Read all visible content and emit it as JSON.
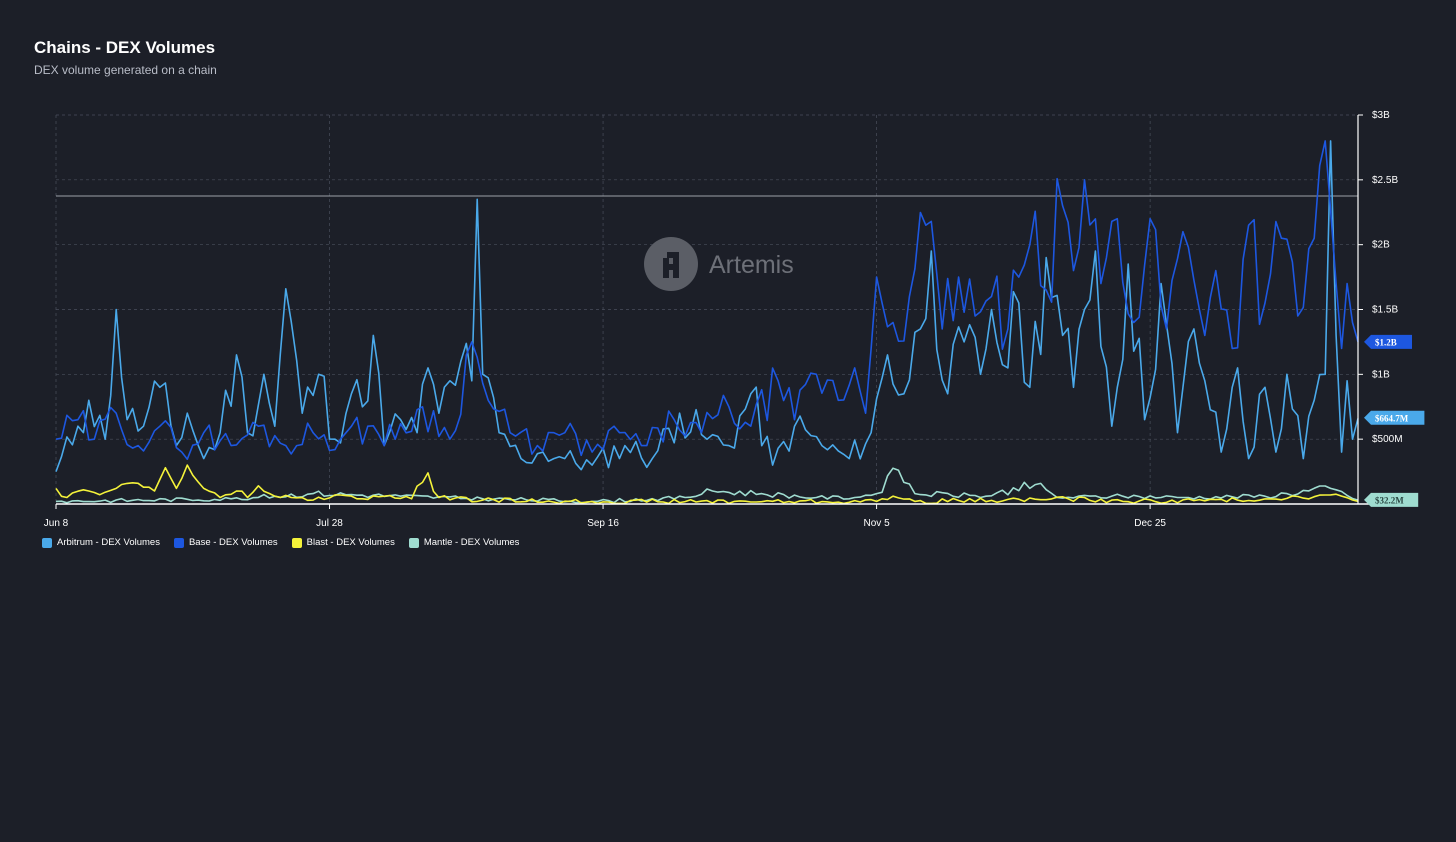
{
  "header": {
    "title": "Chains - DEX Volumes",
    "subtitle": "DEX volume generated on a chain"
  },
  "watermark": {
    "text": "Artemis",
    "icon": "artemis-logo-icon"
  },
  "colors": {
    "background": "#1c1f28",
    "grid": "#4a4f5c",
    "axis": "#ffffff",
    "arbitrum": "#4aa9ea",
    "base": "#1d57e0",
    "blast": "#f4f23a",
    "mantle": "#9fdcd0"
  },
  "chart_data": {
    "type": "line",
    "title": "Chains - DEX Volumes",
    "subtitle": "DEX volume generated on a chain",
    "xlabel": "",
    "ylabel": "",
    "x_tick_labels": [
      "Jun 8",
      "Jul 28",
      "Sep 16",
      "Nov 5",
      "Dec 25"
    ],
    "y_tick_labels": [
      "$500M",
      "$1B",
      "$1.5B",
      "$2B",
      "$2.5B",
      "$3B"
    ],
    "ylim": [
      0,
      3000000000
    ],
    "x_range": [
      "2024-06-08",
      "2025-02-01"
    ],
    "grid": true,
    "legend_position": "bottom-left",
    "last_value_labels": [
      {
        "series": "Base - DEX Volumes",
        "label": "$1.2B",
        "value": 1250000000
      },
      {
        "series": "Arbitrum - DEX Volumes",
        "label": "$664.7M",
        "value": 664700000
      },
      {
        "series": "Mantle - DEX Volumes",
        "label": "$32.2M",
        "value": 32200000
      }
    ],
    "series": [
      {
        "name": "Arbitrum - DEX Volumes",
        "color": "#4aa9ea",
        "anchors": [
          [
            "2024-06-08",
            0.25
          ],
          [
            "2024-06-12",
            0.6
          ],
          [
            "2024-06-14",
            0.8
          ],
          [
            "2024-06-17",
            0.5
          ],
          [
            "2024-06-19",
            1.5
          ],
          [
            "2024-06-21",
            0.65
          ],
          [
            "2024-06-24",
            0.6
          ],
          [
            "2024-06-27",
            0.9
          ],
          [
            "2024-06-30",
            0.45
          ],
          [
            "2024-07-02",
            0.7
          ],
          [
            "2024-07-05",
            0.35
          ],
          [
            "2024-07-08",
            0.55
          ],
          [
            "2024-07-11",
            1.15
          ],
          [
            "2024-07-13",
            0.55
          ],
          [
            "2024-07-16",
            1.0
          ],
          [
            "2024-07-18",
            0.6
          ],
          [
            "2024-07-20",
            1.66
          ],
          [
            "2024-07-23",
            0.7
          ],
          [
            "2024-07-26",
            1.0
          ],
          [
            "2024-07-29",
            0.5
          ],
          [
            "2024-08-01",
            0.85
          ],
          [
            "2024-08-03",
            0.75
          ],
          [
            "2024-08-05",
            1.3
          ],
          [
            "2024-08-07",
            0.45
          ],
          [
            "2024-08-10",
            0.65
          ],
          [
            "2024-08-13",
            0.55
          ],
          [
            "2024-08-15",
            1.05
          ],
          [
            "2024-08-17",
            0.7
          ],
          [
            "2024-08-19",
            0.95
          ],
          [
            "2024-08-21",
            1.1
          ],
          [
            "2024-08-23",
            0.95
          ],
          [
            "2024-08-24",
            2.35
          ],
          [
            "2024-08-25",
            1.0
          ],
          [
            "2024-08-28",
            0.55
          ],
          [
            "2024-09-01",
            0.35
          ],
          [
            "2024-09-05",
            0.4
          ],
          [
            "2024-09-09",
            0.35
          ],
          [
            "2024-09-14",
            0.3
          ],
          [
            "2024-09-20",
            0.45
          ],
          [
            "2024-09-25",
            0.35
          ],
          [
            "2024-09-30",
            0.7
          ],
          [
            "2024-10-05",
            0.5
          ],
          [
            "2024-10-09",
            0.45
          ],
          [
            "2024-10-13",
            0.85
          ],
          [
            "2024-10-17",
            0.3
          ],
          [
            "2024-10-21",
            0.6
          ],
          [
            "2024-10-26",
            0.45
          ],
          [
            "2024-10-31",
            0.35
          ],
          [
            "2024-11-04",
            0.55
          ],
          [
            "2024-11-07",
            1.15
          ],
          [
            "2024-11-10",
            0.85
          ],
          [
            "2024-11-13",
            1.35
          ],
          [
            "2024-11-15",
            1.95
          ],
          [
            "2024-11-18",
            0.85
          ],
          [
            "2024-11-21",
            1.25
          ],
          [
            "2024-11-24",
            1.0
          ],
          [
            "2024-11-26",
            1.5
          ],
          [
            "2024-11-29",
            1.05
          ],
          [
            "2024-12-01",
            1.55
          ],
          [
            "2024-12-03",
            0.9
          ],
          [
            "2024-12-06",
            1.9
          ],
          [
            "2024-12-09",
            1.3
          ],
          [
            "2024-12-11",
            0.9
          ],
          [
            "2024-12-13",
            1.5
          ],
          [
            "2024-12-15",
            1.95
          ],
          [
            "2024-12-18",
            0.6
          ],
          [
            "2024-12-21",
            1.85
          ],
          [
            "2024-12-24",
            0.65
          ],
          [
            "2024-12-27",
            1.7
          ],
          [
            "2024-12-30",
            0.55
          ],
          [
            "2025-01-02",
            1.35
          ],
          [
            "2025-01-04",
            0.95
          ],
          [
            "2025-01-07",
            0.4
          ],
          [
            "2025-01-10",
            1.05
          ],
          [
            "2025-01-12",
            0.35
          ],
          [
            "2025-01-15",
            0.9
          ],
          [
            "2025-01-17",
            0.4
          ],
          [
            "2025-01-19",
            1.0
          ],
          [
            "2025-01-22",
            0.35
          ],
          [
            "2025-01-24",
            0.8
          ],
          [
            "2025-01-26",
            1.0
          ],
          [
            "2025-01-27",
            2.8
          ],
          [
            "2025-01-28",
            1.3
          ],
          [
            "2025-01-29",
            0.4
          ],
          [
            "2025-01-30",
            0.95
          ],
          [
            "2025-01-31",
            0.5
          ],
          [
            "2025-02-01",
            0.66
          ]
        ]
      },
      {
        "name": "Base - DEX Volumes",
        "color": "#1d57e0",
        "anchors": [
          [
            "2024-06-08",
            0.5
          ],
          [
            "2024-06-12",
            0.65
          ],
          [
            "2024-06-15",
            0.5
          ],
          [
            "2024-06-19",
            0.7
          ],
          [
            "2024-06-23",
            0.45
          ],
          [
            "2024-06-27",
            0.6
          ],
          [
            "2024-07-01",
            0.4
          ],
          [
            "2024-07-05",
            0.55
          ],
          [
            "2024-07-10",
            0.45
          ],
          [
            "2024-07-15",
            0.6
          ],
          [
            "2024-07-20",
            0.45
          ],
          [
            "2024-07-25",
            0.55
          ],
          [
            "2024-07-30",
            0.5
          ],
          [
            "2024-08-04",
            0.6
          ],
          [
            "2024-08-09",
            0.5
          ],
          [
            "2024-08-14",
            0.75
          ],
          [
            "2024-08-19",
            0.5
          ],
          [
            "2024-08-23",
            1.25
          ],
          [
            "2024-08-26",
            0.8
          ],
          [
            "2024-08-30",
            0.55
          ],
          [
            "2024-09-04",
            0.45
          ],
          [
            "2024-09-09",
            0.55
          ],
          [
            "2024-09-14",
            0.4
          ],
          [
            "2024-09-19",
            0.55
          ],
          [
            "2024-09-24",
            0.45
          ],
          [
            "2024-09-29",
            0.65
          ],
          [
            "2024-10-04",
            0.55
          ],
          [
            "2024-10-09",
            0.75
          ],
          [
            "2024-10-13",
            0.6
          ],
          [
            "2024-10-18",
            0.95
          ],
          [
            "2024-10-21",
            0.65
          ],
          [
            "2024-10-25",
            1.0
          ],
          [
            "2024-10-29",
            0.8
          ],
          [
            "2024-11-01",
            1.05
          ],
          [
            "2024-11-03",
            0.7
          ],
          [
            "2024-11-05",
            1.75
          ],
          [
            "2024-11-08",
            1.4
          ],
          [
            "2024-11-11",
            1.6
          ],
          [
            "2024-11-14",
            2.15
          ],
          [
            "2024-11-17",
            1.35
          ],
          [
            "2024-11-20",
            1.75
          ],
          [
            "2024-11-23",
            1.45
          ],
          [
            "2024-11-26",
            1.6
          ],
          [
            "2024-11-29",
            1.35
          ],
          [
            "2024-12-03",
            2.0
          ],
          [
            "2024-12-06",
            1.65
          ],
          [
            "2024-12-09",
            2.3
          ],
          [
            "2024-12-11",
            1.8
          ],
          [
            "2024-12-13",
            2.5
          ],
          [
            "2024-12-16",
            1.7
          ],
          [
            "2024-12-19",
            2.2
          ],
          [
            "2024-12-22",
            1.4
          ],
          [
            "2024-12-25",
            2.2
          ],
          [
            "2024-12-28",
            1.35
          ],
          [
            "2024-12-31",
            2.1
          ],
          [
            "2025-01-03",
            1.5
          ],
          [
            "2025-01-06",
            1.8
          ],
          [
            "2025-01-09",
            1.2
          ],
          [
            "2025-01-12",
            2.15
          ],
          [
            "2025-01-15",
            1.55
          ],
          [
            "2025-01-18",
            2.05
          ],
          [
            "2025-01-21",
            1.45
          ],
          [
            "2025-01-24",
            2.05
          ],
          [
            "2025-01-26",
            2.8
          ],
          [
            "2025-01-28",
            1.7
          ],
          [
            "2025-01-29",
            1.2
          ],
          [
            "2025-01-30",
            1.7
          ],
          [
            "2025-01-31",
            1.4
          ],
          [
            "2025-02-01",
            1.25
          ]
        ]
      },
      {
        "name": "Blast - DEX Volumes",
        "color": "#f4f23a",
        "anchors": [
          [
            "2024-06-08",
            0.12
          ],
          [
            "2024-06-10",
            0.05
          ],
          [
            "2024-06-14",
            0.1
          ],
          [
            "2024-06-19",
            0.12
          ],
          [
            "2024-06-23",
            0.16
          ],
          [
            "2024-06-26",
            0.1
          ],
          [
            "2024-06-28",
            0.28
          ],
          [
            "2024-06-30",
            0.12
          ],
          [
            "2024-07-02",
            0.3
          ],
          [
            "2024-07-05",
            0.12
          ],
          [
            "2024-07-08",
            0.05
          ],
          [
            "2024-07-11",
            0.1
          ],
          [
            "2024-07-13",
            0.05
          ],
          [
            "2024-07-15",
            0.14
          ],
          [
            "2024-07-18",
            0.06
          ],
          [
            "2024-07-21",
            0.05
          ],
          [
            "2024-07-25",
            0.03
          ],
          [
            "2024-07-29",
            0.07
          ],
          [
            "2024-08-02",
            0.04
          ],
          [
            "2024-08-07",
            0.06
          ],
          [
            "2024-08-12",
            0.04
          ],
          [
            "2024-08-15",
            0.24
          ],
          [
            "2024-08-17",
            0.05
          ],
          [
            "2024-08-25",
            0.03
          ],
          [
            "2024-09-10",
            0.02
          ],
          [
            "2024-10-10",
            0.02
          ],
          [
            "2024-11-05",
            0.02
          ],
          [
            "2024-11-08",
            0.06
          ],
          [
            "2024-11-12",
            0.02
          ],
          [
            "2024-12-10",
            0.04
          ],
          [
            "2024-12-20",
            0.02
          ],
          [
            "2025-01-10",
            0.03
          ],
          [
            "2025-01-27",
            0.07
          ],
          [
            "2025-02-01",
            0.02
          ]
        ]
      },
      {
        "name": "Mantle - DEX Volumes",
        "color": "#9fdcd0",
        "anchors": [
          [
            "2024-06-08",
            0.02
          ],
          [
            "2024-07-10",
            0.04
          ],
          [
            "2024-07-25",
            0.08
          ],
          [
            "2024-08-10",
            0.06
          ],
          [
            "2024-08-25",
            0.04
          ],
          [
            "2024-09-15",
            0.02
          ],
          [
            "2024-10-01",
            0.05
          ],
          [
            "2024-10-06",
            0.1
          ],
          [
            "2024-10-15",
            0.08
          ],
          [
            "2024-10-25",
            0.05
          ],
          [
            "2024-11-01",
            0.05
          ],
          [
            "2024-11-05",
            0.08
          ],
          [
            "2024-11-09",
            0.26
          ],
          [
            "2024-11-12",
            0.08
          ],
          [
            "2024-11-25",
            0.06
          ],
          [
            "2024-12-04",
            0.15
          ],
          [
            "2024-12-08",
            0.05
          ],
          [
            "2024-12-20",
            0.06
          ],
          [
            "2025-01-01",
            0.05
          ],
          [
            "2025-01-15",
            0.06
          ],
          [
            "2025-01-27",
            0.12
          ],
          [
            "2025-02-01",
            0.03
          ]
        ]
      }
    ]
  }
}
